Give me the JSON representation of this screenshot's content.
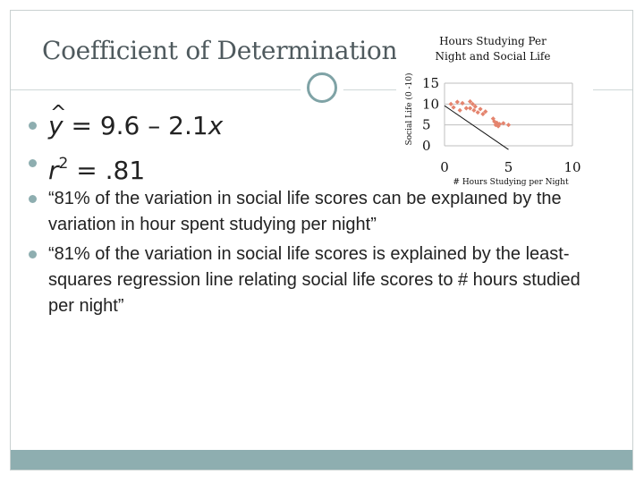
{
  "slide": {
    "title": "Coefficient of Determination",
    "equations": {
      "regression": {
        "yhat": "y",
        "rhs": " =  9.6 – 2.1",
        "x": "x"
      },
      "r_squared": {
        "r": "r",
        "exp": "2",
        "rhs": " = .81"
      }
    },
    "quotes": [
      "“81% of the variation in social life scores can be explained by the variation in hour spent studying per night”",
      "“81% of the variation in social life scores is explained by the least-squares regression line relating social life scores to # hours studied per night”"
    ]
  },
  "colors": {
    "accent": "#8eaeb0",
    "points": "#e4846e",
    "line": "#111111",
    "grid": "#bfbfbf",
    "title_text": "#4f5a5e"
  },
  "chart_data": {
    "type": "scatter",
    "title": [
      "Hours Studying Per",
      "Night and Social Life"
    ],
    "xlabel": "# Hours Studying per Night",
    "ylabel": "Social Life (0 -10)",
    "xlim": [
      0,
      10
    ],
    "ylim": [
      0,
      15
    ],
    "xticks": [
      "0",
      "5",
      "10"
    ],
    "yticks": [
      "0",
      "5",
      "10",
      "15"
    ],
    "grid": true,
    "legend": "none",
    "series": [
      {
        "x": [
          0.5,
          0.7,
          1.0,
          1.2,
          1.4,
          1.7,
          2.0,
          2.0,
          2.2,
          2.3,
          2.4,
          2.6,
          2.8,
          3.0,
          3.2,
          3.8,
          3.9,
          4.0,
          4.1,
          4.2,
          4.3,
          4.6,
          5.0
        ],
        "y": [
          10.0,
          9.2,
          10.5,
          8.5,
          10.2,
          9.0,
          9.0,
          10.6,
          10.0,
          8.5,
          9.4,
          8.0,
          8.8,
          7.6,
          8.2,
          6.5,
          5.8,
          5.0,
          5.5,
          4.7,
          5.2,
          5.4,
          5.0
        ]
      }
    ],
    "regression_line": {
      "intercept": 9.6,
      "slope": -2.1,
      "x_range": [
        0,
        5
      ]
    }
  }
}
